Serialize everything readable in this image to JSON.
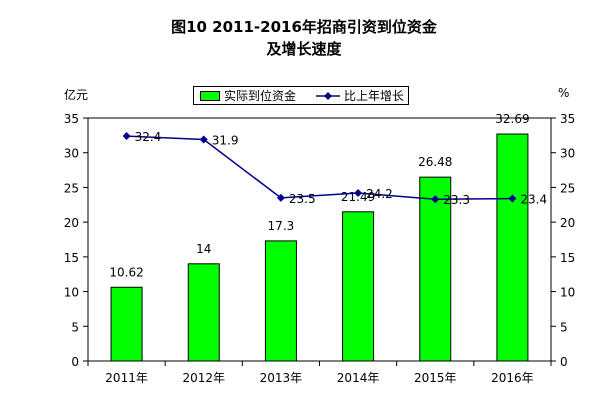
{
  "chart_data": {
    "type": "bar",
    "title": "图10 2011-2016年招商引资到位资金",
    "subtitle": "及增长速度",
    "ylabel_left": "亿元",
    "ylabel_right": "%",
    "categories": [
      "2011年",
      "2012年",
      "2013年",
      "2014年",
      "2015年",
      "2016年"
    ],
    "series": [
      {
        "name": "实际到位资金",
        "type": "bar",
        "axis": "left",
        "color": "#00ff00",
        "values": [
          10.62,
          14,
          17.3,
          21.49,
          26.48,
          32.69
        ],
        "labels": [
          "10.62",
          "14",
          "17.3",
          "21.49",
          "26.48",
          "32.69"
        ]
      },
      {
        "name": "比上年增长",
        "type": "line",
        "axis": "right",
        "color": "#00008b",
        "values": [
          32.4,
          31.9,
          23.5,
          24.2,
          23.3,
          23.4
        ],
        "labels": [
          "32.4",
          "31.9",
          "23.5",
          "24.2",
          "23.3",
          "23.4"
        ]
      }
    ],
    "ylim_left": [
      0,
      35
    ],
    "ylim_right": [
      0,
      35
    ],
    "yticks_left": [
      "0",
      "5",
      "10",
      "15",
      "20",
      "25",
      "30",
      "35"
    ],
    "yticks_right": [
      "0",
      "5",
      "10",
      "15",
      "20",
      "25",
      "30",
      "35"
    ],
    "grid": false,
    "legend_position": "top"
  }
}
